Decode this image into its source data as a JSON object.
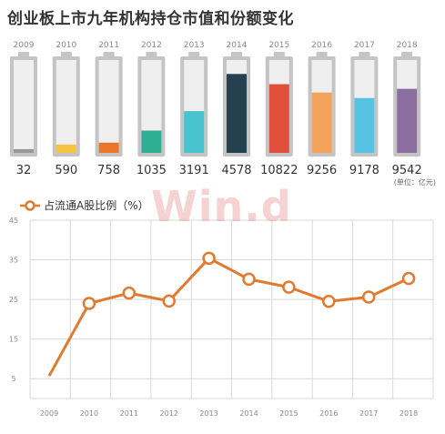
{
  "title": "创业板上市九年机构持仓市值和份额变化",
  "unit_note": "(单位：亿元)",
  "watermark": "Win.d",
  "colors": {
    "battery_frame": "#c4c4c4",
    "battery_empty": "#efefef",
    "line": "#e07a2e",
    "grid": "#d9d9d9",
    "axis_text": "#888888"
  },
  "chart_data": [
    {
      "type": "bar",
      "style": "battery",
      "categories": [
        "2009",
        "2010",
        "2011",
        "2012",
        "2013",
        "2014",
        "2015",
        "2016",
        "2017",
        "2018"
      ],
      "values": [
        32,
        590,
        758,
        1035,
        3191,
        4578,
        10822,
        9256,
        9178,
        9542
      ],
      "value_labels": [
        "32",
        "590",
        "758",
        "1035",
        "3191",
        "4578",
        "10822",
        "9256",
        "9178",
        "9542"
      ],
      "fill_fraction": [
        0.04,
        0.09,
        0.11,
        0.24,
        0.45,
        0.85,
        0.74,
        0.65,
        0.59,
        0.69
      ],
      "bar_colors": [
        "#999999",
        "#f6c342",
        "#e9762b",
        "#2fae93",
        "#49c3cf",
        "#25404f",
        "#e0503a",
        "#f4a35a",
        "#58c2e4",
        "#8c6fa0"
      ],
      "ylabel": "",
      "legend": "none"
    },
    {
      "type": "line",
      "x": [
        "2009",
        "2010",
        "2011",
        "2012",
        "2013",
        "2014",
        "2015",
        "2016",
        "2017",
        "2018"
      ],
      "series": [
        {
          "name": "占流通A股比例（%）",
          "values": [
            5.7,
            24,
            26.6,
            24.6,
            35.4,
            30.1,
            28.1,
            24.5,
            25.6,
            30.3
          ]
        }
      ],
      "yticks": [
        5,
        15,
        25,
        35,
        45
      ],
      "ylim": [
        0,
        45
      ],
      "legend": "top-left",
      "grid": true
    }
  ]
}
